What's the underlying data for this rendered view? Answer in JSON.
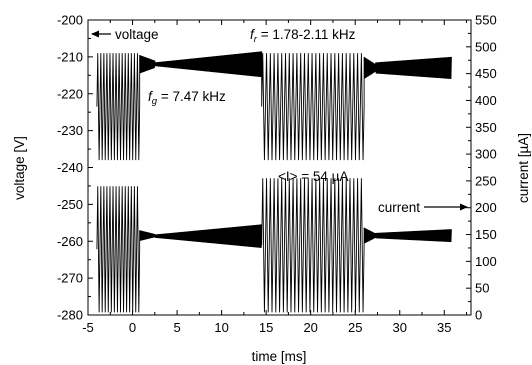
{
  "chart_data": {
    "type": "line",
    "title": "",
    "xlabel": "time [ms]",
    "ylabel_left": "voltage [V]",
    "ylabel_right": "current [µA]",
    "xlim": [
      -5,
      38
    ],
    "ylim_left": [
      -280,
      -200
    ],
    "ylim_right": [
      0,
      550
    ],
    "x_ticks": [
      "-5",
      "0",
      "5",
      "10",
      "15",
      "20",
      "25",
      "30",
      "35"
    ],
    "y_left_ticks": [
      "-200",
      "-210",
      "-220",
      "-230",
      "-240",
      "-250",
      "-260",
      "-270",
      "-280"
    ],
    "y_right_ticks": [
      "550",
      "500",
      "450",
      "400",
      "350",
      "300",
      "250",
      "200",
      "150",
      "100",
      "50",
      "0"
    ],
    "grid": false,
    "series": [
      {
        "axis": "left",
        "label_text": "voltage",
        "segments": [
          {
            "kind": "oscillation",
            "x": [
              -4.0,
              0.8
            ],
            "cycles": 14,
            "high": -209,
            "low": -238
          },
          {
            "kind": "damped",
            "x": [
              0.8,
              2.5
            ],
            "center": -212,
            "amp_start": 2.5,
            "amp_end": 1.0
          },
          {
            "kind": "growing",
            "x": [
              2.5,
              14.5
            ],
            "center": -212,
            "amp_start": 0.5,
            "amp_end": 3.5
          },
          {
            "kind": "oscillation",
            "x": [
              14.5,
              26.0
            ],
            "cycles": 27,
            "high": -209,
            "low": -238
          },
          {
            "kind": "damped",
            "x": [
              26.0,
              27.3
            ],
            "center": -213,
            "amp_start": 3.0,
            "amp_end": 1.0
          },
          {
            "kind": "growing",
            "x": [
              27.3,
              35.8
            ],
            "center": -213,
            "amp_start": 1.5,
            "amp_end": 3.0
          }
        ]
      },
      {
        "axis": "right",
        "label_text": "current",
        "segments": [
          {
            "kind": "oscillation",
            "x": [
              -4.0,
              0.8
            ],
            "cycles": 14,
            "high": 240,
            "low": 5
          },
          {
            "kind": "damped",
            "x": [
              0.8,
              2.5
            ],
            "center": 148,
            "amp_start": 10,
            "amp_end": 3
          },
          {
            "kind": "growing",
            "x": [
              2.5,
              14.5
            ],
            "center": 147,
            "amp_start": 3,
            "amp_end": 22
          },
          {
            "kind": "oscillation",
            "x": [
              14.5,
              26.0
            ],
            "cycles": 27,
            "high": 255,
            "low": 5
          },
          {
            "kind": "damped",
            "x": [
              26.0,
              27.3
            ],
            "center": 148,
            "amp_start": 15,
            "amp_end": 4
          },
          {
            "kind": "growing",
            "x": [
              27.3,
              35.8
            ],
            "center": 148,
            "amp_start": 5,
            "amp_end": 12
          }
        ]
      }
    ],
    "annotations": {
      "voltage_label": "voltage",
      "fr_symbol": "f",
      "fr_sub": "r",
      "fr_value": " = 1.78-2.11 kHz",
      "fg_symbol": "f",
      "fg_sub": "g",
      "fg_value": " = 7.47 kHz",
      "current_mean": "<I> = 54 µA",
      "current_label": "current"
    }
  }
}
